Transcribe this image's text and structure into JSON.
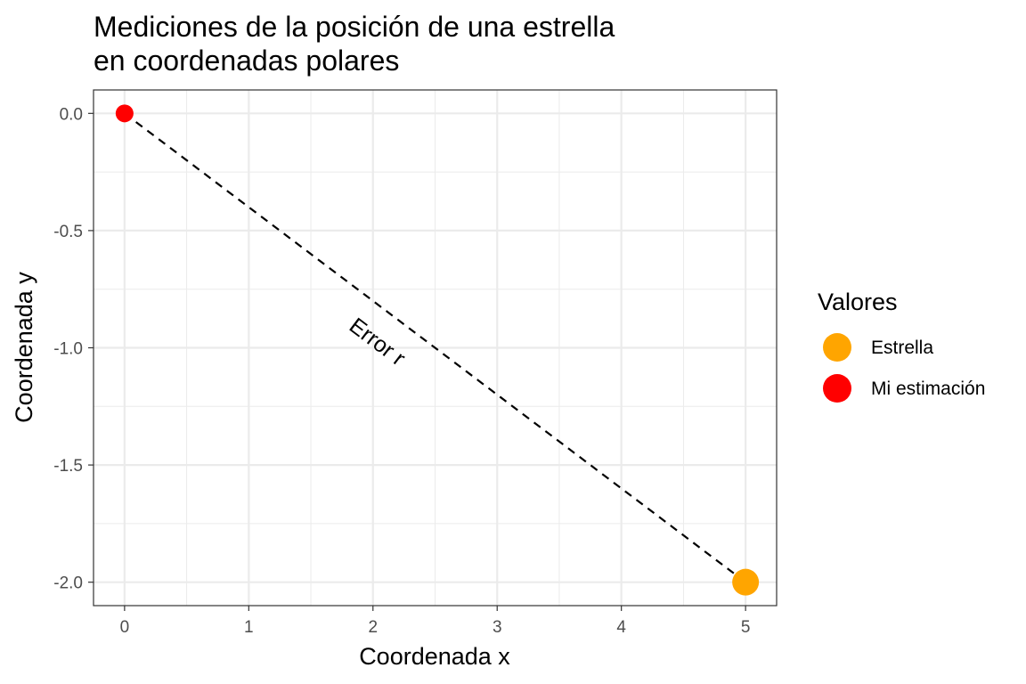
{
  "chart_data": {
    "type": "scatter",
    "title_lines": [
      "Mediciones de la posición de una estrella",
      "en coordenadas polares"
    ],
    "xlabel": "Coordenada x",
    "ylabel": "Coordenada y",
    "xlim": [
      -0.25,
      5.25
    ],
    "ylim": [
      -2.1,
      0.1
    ],
    "x_ticks": [
      0,
      1,
      2,
      3,
      4,
      5
    ],
    "x_tick_labels": [
      "0",
      "1",
      "2",
      "3",
      "4",
      "5"
    ],
    "y_ticks": [
      0,
      -0.5,
      -1,
      -1.5,
      -2
    ],
    "y_tick_labels": [
      "0.0",
      "-0.5",
      "-1.0",
      "-1.5",
      "-2.0"
    ],
    "grid": true,
    "legend": {
      "title": "Valores",
      "placement": "right",
      "entries": [
        {
          "label": "Estrella",
          "color": "#FFA500"
        },
        {
          "label": "Mi estimación",
          "color": "#FF0000"
        }
      ]
    },
    "points": [
      {
        "series": "Estrella",
        "x": 5,
        "y": -2,
        "color": "#FFA500"
      },
      {
        "series": "Mi estimación",
        "x": 0,
        "y": 0,
        "color": "#FF0000"
      }
    ],
    "segment": {
      "x1": 0,
      "y1": 0,
      "x2": 5,
      "y2": -2,
      "linetype": "dashed",
      "color": "#000000"
    },
    "annotation": {
      "text": "Error r",
      "x": 2,
      "y": -1
    }
  }
}
